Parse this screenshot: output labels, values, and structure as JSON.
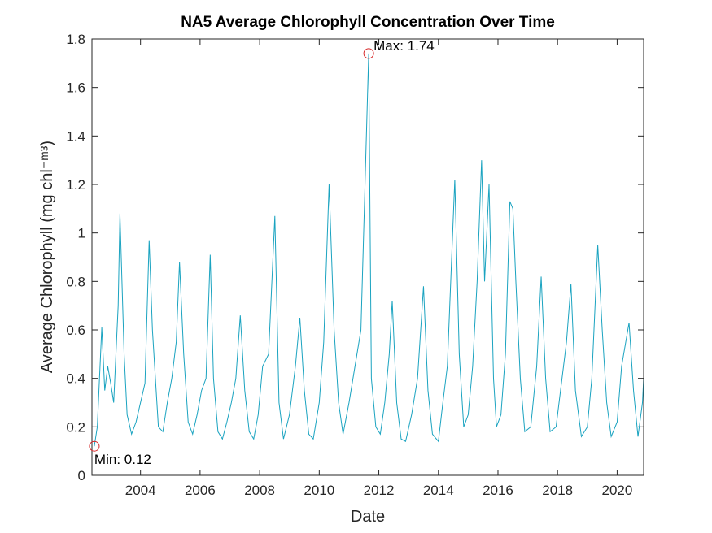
{
  "chart_data": {
    "type": "line",
    "title": "NA5 Average Chlorophyll Concentration Over Time",
    "x_label": "Date",
    "y_label": "Average Chlorophyll (mg chl⁻ᵐ³)",
    "xlim": [
      2002.37,
      2020.89
    ],
    "ylim": [
      0,
      1.8
    ],
    "xticks": [
      2004,
      2006,
      2008,
      2010,
      2012,
      2014,
      2016,
      2018,
      2020
    ],
    "yticks": [
      0,
      0.2,
      0.4,
      0.6,
      0.8,
      1,
      1.2,
      1.4,
      1.6,
      1.8
    ],
    "series": [
      {
        "color": "#1aa3c0",
        "x": [
          2002.45,
          2002.55,
          2002.7,
          2002.8,
          2002.9,
          2003.0,
          2003.1,
          2003.25,
          2003.31,
          2003.45,
          2003.55,
          2003.7,
          2003.85,
          2004.0,
          2004.15,
          2004.29,
          2004.4,
          2004.5,
          2004.6,
          2004.75,
          2004.9,
          2005.05,
          2005.2,
          2005.31,
          2005.45,
          2005.6,
          2005.75,
          2005.9,
          2006.05,
          2006.2,
          2006.34,
          2006.45,
          2006.6,
          2006.75,
          2006.9,
          2007.05,
          2007.2,
          2007.35,
          2007.5,
          2007.65,
          2007.8,
          2007.95,
          2008.1,
          2008.3,
          2008.51,
          2008.65,
          2008.8,
          2009.0,
          2009.2,
          2009.35,
          2009.5,
          2009.65,
          2009.8,
          2010.0,
          2010.15,
          2010.33,
          2010.5,
          2010.65,
          2010.8,
          2011.0,
          2011.2,
          2011.4,
          2011.66,
          2011.75,
          2011.9,
          2012.05,
          2012.2,
          2012.35,
          2012.45,
          2012.6,
          2012.75,
          2012.9,
          2013.1,
          2013.3,
          2013.5,
          2013.65,
          2013.8,
          2014.0,
          2014.15,
          2014.3,
          2014.55,
          2014.7,
          2014.85,
          2015.0,
          2015.15,
          2015.3,
          2015.45,
          2015.55,
          2015.7,
          2015.85,
          2015.95,
          2016.1,
          2016.25,
          2016.4,
          2016.5,
          2016.6,
          2016.75,
          2016.9,
          2017.1,
          2017.3,
          2017.45,
          2017.6,
          2017.75,
          2017.95,
          2018.15,
          2018.3,
          2018.45,
          2018.6,
          2018.8,
          2019.0,
          2019.15,
          2019.35,
          2019.5,
          2019.65,
          2019.8,
          2020.0,
          2020.15,
          2020.4,
          2020.55,
          2020.7,
          2020.85,
          2020.89
        ],
        "values": [
          0.12,
          0.2,
          0.61,
          0.35,
          0.45,
          0.38,
          0.3,
          0.7,
          1.08,
          0.5,
          0.25,
          0.17,
          0.22,
          0.3,
          0.38,
          0.97,
          0.6,
          0.4,
          0.2,
          0.18,
          0.3,
          0.4,
          0.55,
          0.88,
          0.5,
          0.22,
          0.17,
          0.25,
          0.35,
          0.4,
          0.91,
          0.4,
          0.18,
          0.15,
          0.22,
          0.3,
          0.4,
          0.66,
          0.35,
          0.18,
          0.15,
          0.25,
          0.45,
          0.5,
          1.07,
          0.3,
          0.15,
          0.25,
          0.45,
          0.65,
          0.35,
          0.17,
          0.15,
          0.3,
          0.55,
          1.2,
          0.6,
          0.3,
          0.17,
          0.3,
          0.45,
          0.6,
          1.74,
          0.4,
          0.2,
          0.17,
          0.3,
          0.5,
          0.72,
          0.3,
          0.15,
          0.14,
          0.25,
          0.4,
          0.78,
          0.35,
          0.17,
          0.14,
          0.3,
          0.45,
          1.22,
          0.5,
          0.2,
          0.25,
          0.45,
          0.8,
          1.3,
          0.8,
          1.2,
          0.4,
          0.2,
          0.25,
          0.5,
          1.13,
          1.1,
          0.8,
          0.4,
          0.18,
          0.2,
          0.45,
          0.82,
          0.4,
          0.18,
          0.2,
          0.4,
          0.55,
          0.79,
          0.35,
          0.16,
          0.2,
          0.4,
          0.95,
          0.6,
          0.3,
          0.16,
          0.22,
          0.45,
          0.63,
          0.35,
          0.16,
          0.3,
          0.4
        ]
      }
    ],
    "max": {
      "x": 2011.66,
      "value": 1.74,
      "label": "Max: 1.74",
      "color": "#d62728"
    },
    "min": {
      "x": 2002.45,
      "value": 0.12,
      "label": "Min: 0.12",
      "color": "#d62728"
    }
  }
}
